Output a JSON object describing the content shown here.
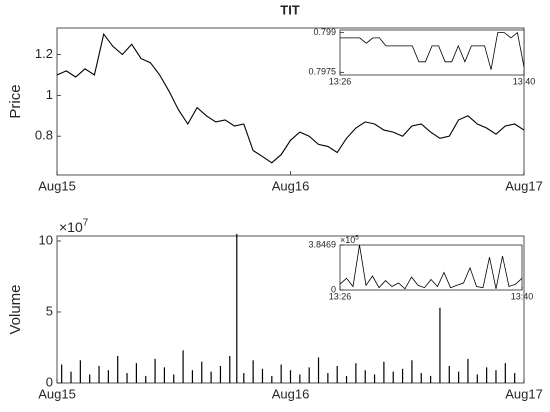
{
  "chart_data": [
    {
      "type": "line",
      "title": "TIT",
      "y_label": "Price",
      "color": "#000000",
      "x": [
        0,
        0.04,
        0.08,
        0.12,
        0.16,
        0.2,
        0.24,
        0.28,
        0.32,
        0.36,
        0.4,
        0.44,
        0.48,
        0.52,
        0.56,
        0.6,
        0.64,
        0.68,
        0.72,
        0.76,
        0.8,
        0.84,
        0.88,
        0.92,
        0.96,
        1,
        1.04,
        1.08,
        1.12,
        1.16,
        1.2,
        1.24,
        1.28,
        1.32,
        1.36,
        1.4,
        1.44,
        1.48,
        1.52,
        1.56,
        1.6,
        1.64,
        1.68,
        1.72,
        1.76,
        1.8,
        1.84,
        1.88,
        1.92,
        1.96,
        2
      ],
      "values": [
        1.1,
        1.12,
        1.09,
        1.13,
        1.1,
        1.3,
        1.24,
        1.2,
        1.25,
        1.18,
        1.16,
        1.1,
        1.02,
        0.93,
        0.86,
        0.94,
        0.9,
        0.87,
        0.88,
        0.85,
        0.86,
        0.73,
        0.7,
        0.67,
        0.71,
        0.78,
        0.82,
        0.8,
        0.76,
        0.75,
        0.72,
        0.79,
        0.84,
        0.87,
        0.86,
        0.83,
        0.82,
        0.8,
        0.85,
        0.86,
        0.82,
        0.79,
        0.8,
        0.88,
        0.9,
        0.86,
        0.84,
        0.81,
        0.85,
        0.86,
        0.83
      ],
      "xlim": [
        0,
        2
      ],
      "xticks": [
        {
          "value": 0,
          "label": "Aug15"
        },
        {
          "value": 1,
          "label": "Aug16"
        },
        {
          "value": 2,
          "label": "Aug17"
        }
      ],
      "ylim": [
        0.61,
        1.33
      ],
      "yticks": [
        0.8,
        1,
        1.2
      ]
    },
    {
      "type": "bar",
      "y_label": "Volume",
      "y_exponent_base": "×10",
      "y_exponent": "7",
      "color": "#000000",
      "x": [
        0.02,
        0.06,
        0.1,
        0.14,
        0.18,
        0.22,
        0.26,
        0.3,
        0.34,
        0.38,
        0.42,
        0.46,
        0.5,
        0.54,
        0.58,
        0.62,
        0.66,
        0.7,
        0.74,
        0.77,
        0.8,
        0.84,
        0.88,
        0.92,
        0.96,
        1.0,
        1.04,
        1.08,
        1.12,
        1.16,
        1.2,
        1.24,
        1.28,
        1.32,
        1.36,
        1.4,
        1.44,
        1.48,
        1.52,
        1.56,
        1.6,
        1.64,
        1.68,
        1.72,
        1.76,
        1.8,
        1.84,
        1.88,
        1.92,
        1.96
      ],
      "values": [
        1.3,
        0.8,
        1.6,
        0.6,
        1.2,
        0.9,
        1.9,
        0.7,
        1.4,
        0.5,
        1.7,
        1.1,
        0.6,
        2.3,
        0.9,
        1.5,
        0.8,
        1.2,
        1.9,
        10.5,
        0.7,
        1.6,
        1.0,
        0.5,
        1.3,
        0.9,
        0.6,
        1.1,
        1.8,
        0.7,
        1.2,
        0.5,
        1.4,
        0.9,
        0.6,
        1.5,
        0.8,
        1.0,
        1.6,
        0.7,
        0.5,
        5.3,
        1.2,
        0.8,
        1.7,
        0.6,
        1.1,
        0.9,
        1.4,
        0.7
      ],
      "xlim": [
        0,
        2
      ],
      "xticks": [
        {
          "value": 0,
          "label": "Aug15"
        },
        {
          "value": 1,
          "label": "Aug16"
        },
        {
          "value": 2,
          "label": "Aug17"
        }
      ],
      "ylim": [
        0,
        10.35
      ],
      "yticks": [
        0,
        5,
        10
      ]
    },
    {
      "type": "line",
      "color": "#000000",
      "x": [
        806,
        806.5,
        807,
        807.5,
        808,
        808.5,
        809,
        809.5,
        810,
        810.5,
        811,
        811.5,
        812,
        812.5,
        813,
        813.5,
        814,
        814.5,
        815,
        815.5,
        816,
        816.5,
        817,
        817.5,
        818,
        818.5,
        819,
        819.5,
        820
      ],
      "values": [
        0.7988,
        0.7988,
        0.7988,
        0.7988,
        0.7986,
        0.7988,
        0.7988,
        0.7985,
        0.7985,
        0.7985,
        0.7985,
        0.7985,
        0.7979,
        0.7979,
        0.7985,
        0.7985,
        0.7979,
        0.7979,
        0.7985,
        0.7979,
        0.7985,
        0.7985,
        0.7985,
        0.7976,
        0.799,
        0.799,
        0.7988,
        0.799,
        0.7977
      ],
      "xlim": [
        806,
        820
      ],
      "xticks": [
        {
          "value": 806,
          "label": "13:26"
        },
        {
          "value": 820,
          "label": "13:40"
        }
      ],
      "ylim": [
        0.7974,
        0.7991
      ],
      "yticks": [
        0.7975,
        0.799
      ]
    },
    {
      "type": "line",
      "y_exponent_base": "×10",
      "y_exponent": "5",
      "color": "#000000",
      "x": [
        806,
        806.5,
        807,
        807.5,
        808,
        808.5,
        809,
        809.5,
        810,
        810.5,
        811,
        811.5,
        812,
        812.5,
        813,
        813.5,
        814,
        814.5,
        815,
        815.5,
        816,
        816.5,
        817,
        817.5,
        818,
        818.5,
        819,
        819.5,
        820
      ],
      "values": [
        0.5,
        1.0,
        0.3,
        3.8469,
        0.4,
        1.2,
        0.2,
        0.8,
        0.3,
        0.6,
        0.1,
        1.1,
        0.4,
        0.2,
        0.9,
        0.3,
        1.5,
        0.2,
        0.4,
        0.6,
        1.9,
        0.3,
        0.2,
        2.8,
        0.1,
        2.9,
        0.3,
        0.5,
        1.0
      ],
      "xlim": [
        806,
        820
      ],
      "xticks": [
        {
          "value": 806,
          "label": "13:26"
        },
        {
          "value": 820,
          "label": "13:40"
        }
      ],
      "ylim": [
        0,
        3.8469
      ],
      "yticks": [
        0,
        3.8469
      ]
    }
  ]
}
